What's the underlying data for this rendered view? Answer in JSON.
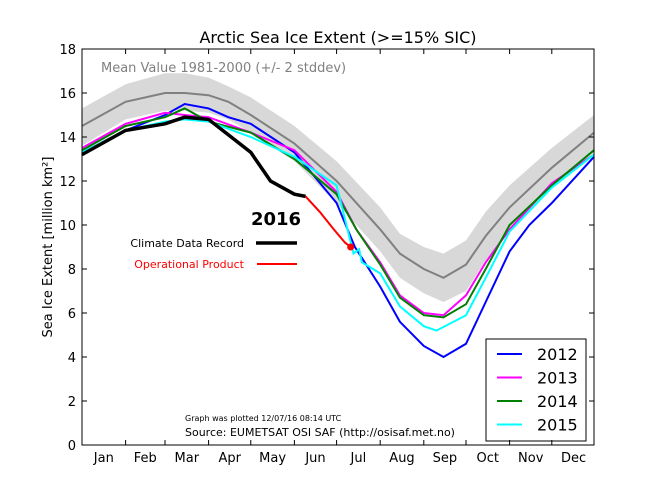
{
  "chart_data": {
    "type": "line",
    "title": "Arctic Sea Ice Extent (>=15% SIC)",
    "ylabel": "Sea Ice Extent [million km²]",
    "xlabel": "",
    "ylim": [
      0,
      18
    ],
    "yticks": [
      0,
      2,
      4,
      6,
      8,
      10,
      12,
      14,
      16,
      18
    ],
    "xlim_day_of_year": [
      1,
      365
    ],
    "month_labels": [
      "Jan",
      "Feb",
      "Mar",
      "Apr",
      "May",
      "Jun",
      "Jul",
      "Aug",
      "Sep",
      "Oct",
      "Nov",
      "Dec"
    ],
    "grid": false,
    "mean_label": "Mean Value 1981-2000 (+/- 2 stddev)",
    "mean": {
      "color": "#808080",
      "band_color": "#d8d8d8",
      "x": [
        1,
        32,
        60,
        74,
        91,
        105,
        121,
        152,
        182,
        213,
        227,
        244,
        258,
        274,
        288,
        305,
        335,
        365
      ],
      "values": [
        14.5,
        15.6,
        16.0,
        16.0,
        15.9,
        15.6,
        15.0,
        13.7,
        12.0,
        9.8,
        8.7,
        8.0,
        7.6,
        8.2,
        9.5,
        10.8,
        12.6,
        14.2
      ],
      "band_lower": [
        13.6,
        14.8,
        15.2,
        15.2,
        15.1,
        14.8,
        14.2,
        12.9,
        11.0,
        8.8,
        7.6,
        6.9,
        6.5,
        7.0,
        8.4,
        9.8,
        11.7,
        13.3
      ],
      "band_upper": [
        15.3,
        16.4,
        16.9,
        16.9,
        16.7,
        16.3,
        15.8,
        14.5,
        12.9,
        10.8,
        9.6,
        9.0,
        8.7,
        9.3,
        10.6,
        11.8,
        13.5,
        15.0
      ]
    },
    "series": [
      {
        "name": "2012",
        "color": "#0000ff",
        "x": [
          1,
          32,
          60,
          74,
          91,
          105,
          121,
          152,
          182,
          195,
          213,
          227,
          244,
          258,
          274,
          288,
          305,
          319,
          335,
          365
        ],
        "values": [
          13.3,
          14.3,
          15.0,
          15.5,
          15.3,
          14.9,
          14.6,
          13.3,
          11.0,
          9.0,
          7.2,
          5.6,
          4.5,
          4.0,
          4.6,
          6.5,
          8.8,
          10.0,
          11.0,
          13.1
        ]
      },
      {
        "name": "2013",
        "color": "#ff00ff",
        "x": [
          1,
          32,
          60,
          74,
          91,
          121,
          152,
          182,
          196,
          213,
          227,
          244,
          258,
          274,
          288,
          305,
          335,
          365
        ],
        "values": [
          13.5,
          14.6,
          15.1,
          15.0,
          14.9,
          14.2,
          13.4,
          11.5,
          9.8,
          8.3,
          6.8,
          6.0,
          5.9,
          6.8,
          8.3,
          9.8,
          11.9,
          13.2
        ]
      },
      {
        "name": "2014",
        "color": "#008000",
        "x": [
          1,
          32,
          60,
          74,
          91,
          121,
          152,
          182,
          196,
          213,
          227,
          244,
          258,
          274,
          288,
          305,
          335,
          365
        ],
        "values": [
          13.4,
          14.5,
          14.9,
          15.3,
          14.7,
          14.2,
          13.0,
          11.4,
          9.8,
          8.2,
          6.7,
          5.9,
          5.8,
          6.4,
          8.0,
          10.0,
          11.8,
          13.4
        ]
      },
      {
        "name": "2015",
        "color": "#00ffff",
        "x": [
          1,
          32,
          60,
          74,
          91,
          121,
          152,
          182,
          194,
          198,
          200,
          213,
          227,
          244,
          253,
          274,
          288,
          305,
          335,
          365
        ],
        "values": [
          13.3,
          14.3,
          14.7,
          14.8,
          14.7,
          14.0,
          13.1,
          11.8,
          8.7,
          8.9,
          8.3,
          7.8,
          6.3,
          5.4,
          5.2,
          5.9,
          7.6,
          9.7,
          11.7,
          13.2
        ]
      }
    ],
    "annotation_year": "2016",
    "series_2016": [
      {
        "name": "Climate Data Record",
        "color": "#000000",
        "x": [
          1,
          32,
          60,
          74,
          91,
          105,
          121,
          135,
          152,
          160
        ],
        "values": [
          13.2,
          14.3,
          14.6,
          14.9,
          14.8,
          14.1,
          13.3,
          12.0,
          11.4,
          11.3
        ]
      },
      {
        "name": "Operational Product",
        "color": "#ff0000",
        "x": [
          160,
          170,
          180,
          188,
          192
        ],
        "values": [
          11.3,
          10.6,
          9.8,
          9.2,
          9.0
        ]
      }
    ],
    "legend_position": "lower-right",
    "footnote_plotted": "Graph was plotted 12/07/16 08:14 UTC",
    "footnote_source": "Source: EUMETSAT OSI SAF (http://osisaf.met.no)"
  }
}
